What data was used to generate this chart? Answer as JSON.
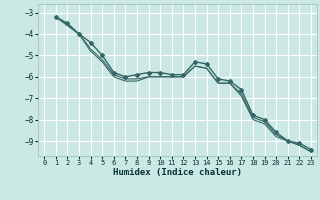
{
  "xlabel": "Humidex (Indice chaleur)",
  "bg_color": "#cce8e4",
  "grid_color": "#ffffff",
  "line_color": "#336666",
  "xlim": [
    -0.5,
    23.5
  ],
  "ylim": [
    -9.7,
    -2.6
  ],
  "yticks": [
    -9,
    -8,
    -7,
    -6,
    -5,
    -4,
    -3
  ],
  "xticks": [
    0,
    1,
    2,
    3,
    4,
    5,
    6,
    7,
    8,
    9,
    10,
    11,
    12,
    13,
    14,
    15,
    16,
    17,
    18,
    19,
    20,
    21,
    22,
    23
  ],
  "series1_x": [
    1,
    2,
    3,
    4,
    5,
    6,
    7,
    8,
    9,
    10,
    11,
    12,
    13,
    14,
    15,
    16,
    17,
    18,
    19,
    20,
    21,
    22,
    23
  ],
  "series1_y": [
    -3.2,
    -3.5,
    -4.0,
    -4.4,
    -5.0,
    -5.8,
    -6.0,
    -5.9,
    -5.8,
    -5.8,
    -5.9,
    -5.9,
    -5.3,
    -5.4,
    -6.1,
    -6.2,
    -6.6,
    -7.8,
    -8.0,
    -8.6,
    -9.0,
    -9.1,
    -9.4
  ],
  "series2_x": [
    1,
    2,
    3,
    4,
    5,
    6,
    7,
    8,
    9,
    10,
    11,
    12,
    13,
    14,
    15,
    16,
    17,
    18,
    19,
    20,
    21,
    22,
    23
  ],
  "series2_y": [
    -3.2,
    -3.6,
    -4.0,
    -4.7,
    -5.2,
    -5.9,
    -6.1,
    -6.1,
    -6.0,
    -6.0,
    -6.0,
    -6.0,
    -5.5,
    -5.6,
    -6.3,
    -6.3,
    -6.8,
    -7.9,
    -8.1,
    -8.7,
    -9.0,
    -9.2,
    -9.5
  ],
  "series3_x": [
    1,
    2,
    3,
    4,
    5,
    6,
    7,
    8,
    9,
    10,
    11,
    12,
    13,
    14,
    15,
    16,
    17,
    18,
    19,
    20,
    21,
    22,
    23
  ],
  "series3_y": [
    -3.2,
    -3.6,
    -4.0,
    -4.8,
    -5.3,
    -6.0,
    -6.2,
    -6.2,
    -6.0,
    -6.0,
    -6.0,
    -6.0,
    -5.5,
    -5.6,
    -6.3,
    -6.3,
    -6.9,
    -8.0,
    -8.2,
    -8.8,
    -9.0,
    -9.2,
    -9.5
  ]
}
